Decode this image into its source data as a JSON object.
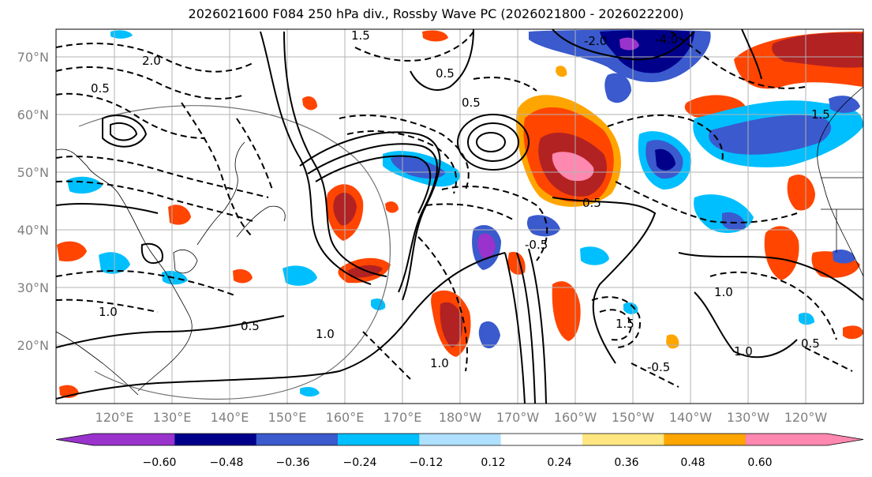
{
  "title": "2026021600 F084 250 hPa div., Rossby Wave PC (2026021800 - 2026022200)",
  "map": {
    "lat_labels": [
      "70°N",
      "60°N",
      "50°N",
      "40°N",
      "30°N",
      "20°N"
    ],
    "lon_labels": [
      "120°E",
      "130°E",
      "140°E",
      "150°E",
      "160°E",
      "170°E",
      "180°W",
      "170°W",
      "160°W",
      "150°W",
      "140°W",
      "130°W",
      "120°W"
    ],
    "contour_labels": [
      "0.5",
      "2.0",
      "-2.0",
      "-4.0",
      "1.5",
      "0.5",
      "0.5",
      "1.0",
      "0.5",
      "0.5",
      "1.0",
      "-0.5",
      "1.0",
      "1.5",
      "-0.5",
      "1.0",
      "1.0",
      "1.5",
      "0.5"
    ]
  },
  "colorbar": {
    "ticks": [
      "−0.60",
      "−0.48",
      "−0.36",
      "−0.24",
      "−0.12",
      "0.12",
      "0.24",
      "0.36",
      "0.48",
      "0.60"
    ],
    "colors": [
      "#9933cc",
      "#00008b",
      "#3a5acd",
      "#00bfff",
      "#b0e0ff",
      "#ffffff",
      "#ffe680",
      "#ffa500",
      "#ff4500",
      "#b22222",
      "#ff88b0"
    ]
  }
}
